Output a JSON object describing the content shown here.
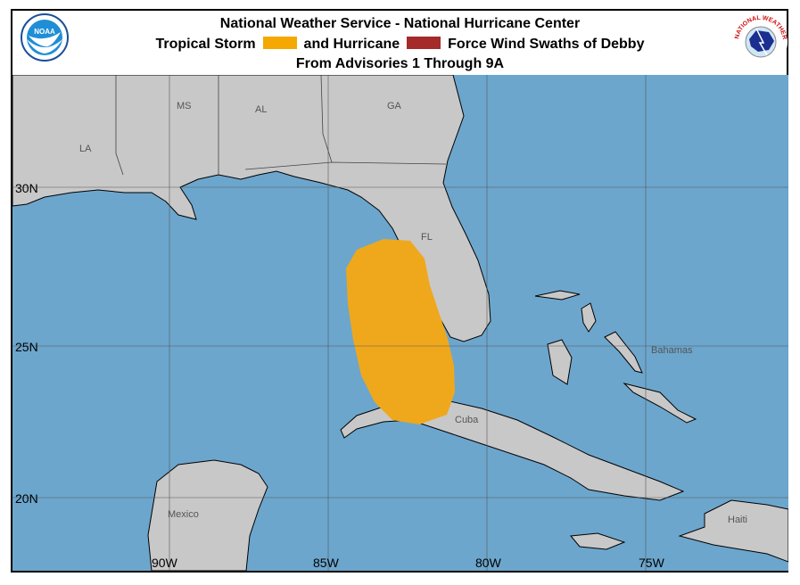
{
  "header": {
    "line1": "National Weather Service - National Hurricane Center",
    "line2_part1": "Tropical Storm",
    "line2_part2": "and Hurricane",
    "line2_part3": "Force Wind Swaths of Debby",
    "line3": "From Advisories 1 Through 9A",
    "left_logo": "NOAA",
    "right_logo": "NATIONAL WEATHER SERVICE"
  },
  "legend": {
    "tropical_storm_color": "#F5A800",
    "hurricane_color": "#A52A2A"
  },
  "map": {
    "ocean_color": "#6CA6CD",
    "land_color": "#C8C8C8",
    "swath_color": "#EFA81C",
    "region_labels": {
      "ms": "MS",
      "al": "AL",
      "ga": "GA",
      "la": "LA",
      "fl": "FL",
      "bahamas": "Bahamas",
      "cuba": "Cuba",
      "mexico": "Mexico",
      "haiti": "Haiti"
    },
    "lat_labels": [
      "30N",
      "25N",
      "20N"
    ],
    "lon_labels": [
      "90W",
      "85W",
      "80W",
      "75W"
    ]
  }
}
